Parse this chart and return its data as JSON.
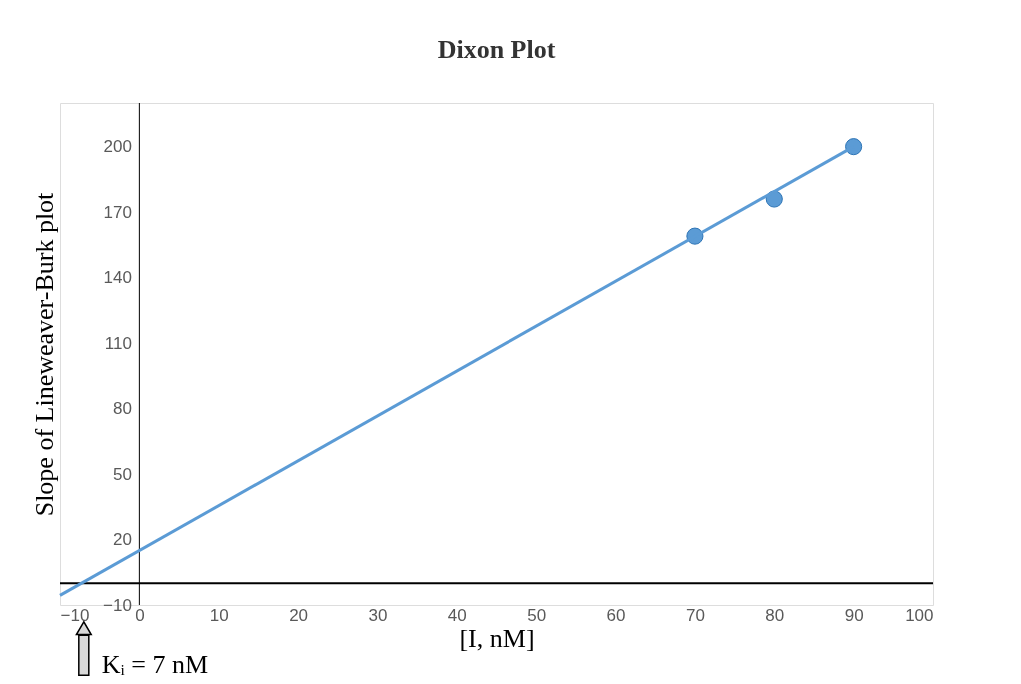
{
  "chart_data": {
    "type": "scatter",
    "title": "Dixon Plot",
    "xlabel": "[I, nM]",
    "ylabel": "Slope of Lineweaver-Burk plot",
    "xlim": [
      -10,
      100
    ],
    "ylim": [
      -10,
      220
    ],
    "xticks": [
      -10,
      0,
      10,
      20,
      30,
      40,
      50,
      60,
      70,
      80,
      90,
      100
    ],
    "yticks": [
      -10,
      20,
      50,
      80,
      110,
      140,
      170,
      200
    ],
    "grid": false,
    "marker": "circle",
    "series": [
      {
        "color": "#5b9bd5",
        "x": [
          70,
          80,
          90
        ],
        "values": [
          159,
          176,
          200
        ]
      },
      {
        "type": "line",
        "color": "#5b9bd5",
        "x": [
          -10,
          90
        ],
        "values": [
          -5.6,
          200
        ],
        "marker": "none"
      }
    ],
    "annotations": [
      {
        "text": "Kᵢ = 7 nM",
        "x": -7,
        "y": 0
      }
    ]
  }
}
